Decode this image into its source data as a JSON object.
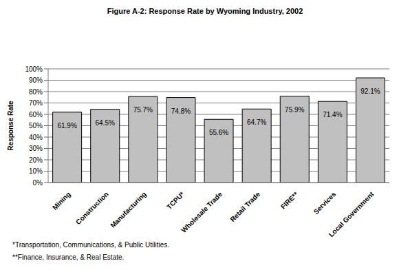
{
  "chart_data": {
    "type": "bar",
    "title": "Figure A-2: Response Rate by Wyoming Industry, 2002",
    "y_label": "Response Rate",
    "categories": [
      "Mining",
      "Construction",
      "Manufacturing",
      "TCPU*",
      "Wholesale Trade",
      "Retail Trade",
      "FIRE**",
      "Services",
      "Local Government"
    ],
    "values": [
      61.9,
      64.5,
      75.7,
      74.8,
      55.6,
      64.7,
      75.9,
      71.4,
      92.1
    ],
    "value_labels": [
      "61.9%",
      "64.5%",
      "75.7%",
      "74.8%",
      "55.6%",
      "64.7%",
      "75.9%",
      "71.4%",
      "92.1%"
    ],
    "data_labels": true,
    "color": "#c0c0c0",
    "ylim": [
      0,
      100
    ],
    "yticks": [
      {
        "value": 0,
        "label": "0%"
      },
      {
        "value": 10,
        "label": "10%"
      },
      {
        "value": 20,
        "label": "20%"
      },
      {
        "value": 30,
        "label": "30%"
      },
      {
        "value": 40,
        "label": "40%"
      },
      {
        "value": 50,
        "label": "50%"
      },
      {
        "value": 60,
        "label": "60%"
      },
      {
        "value": 70,
        "label": "70%"
      },
      {
        "value": 80,
        "label": "80%"
      },
      {
        "value": 90,
        "label": "90%"
      },
      {
        "value": 100,
        "label": "100%"
      }
    ],
    "grid": true,
    "footnotes": [
      "*Transportation, Communications, & Public Utilities.",
      "**Finance, Insurance, & Real Estate."
    ]
  }
}
